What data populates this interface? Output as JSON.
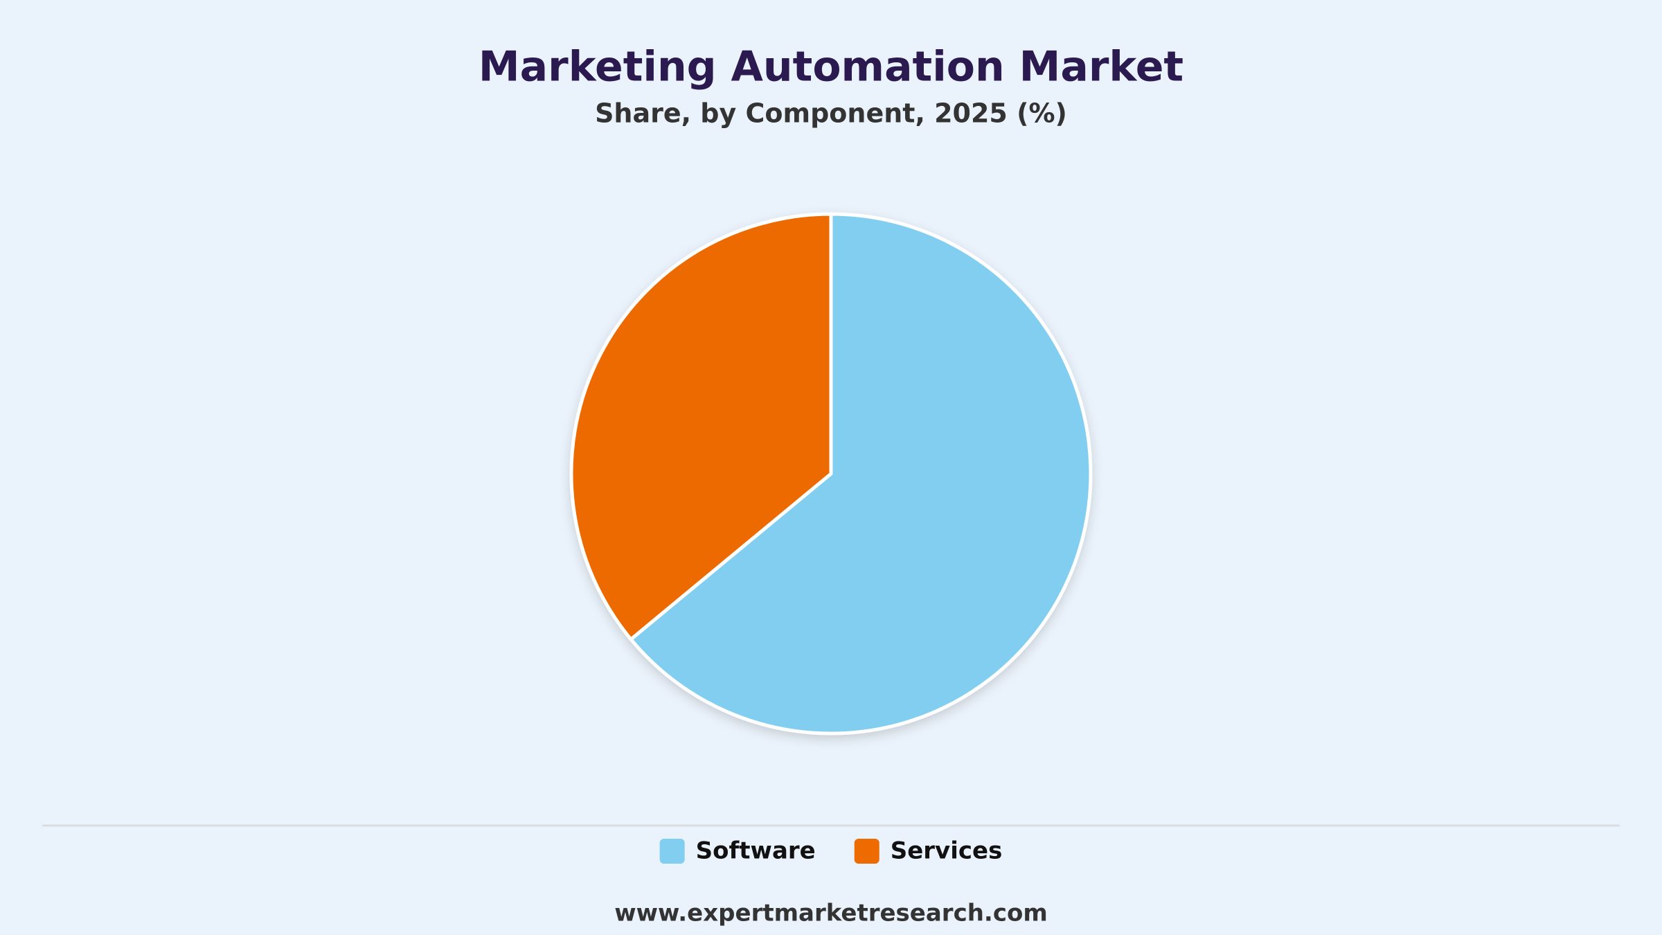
{
  "chart_data": {
    "type": "pie",
    "title": "Marketing Automation Market",
    "subtitle": "Share, by Component, 2025 (%)",
    "categories": [
      "Software",
      "Services"
    ],
    "values": [
      64,
      36
    ],
    "colors": [
      "#81cef0",
      "#ed6b00"
    ],
    "legend": "bottom",
    "source": "www.expertmarketresearch.com"
  }
}
